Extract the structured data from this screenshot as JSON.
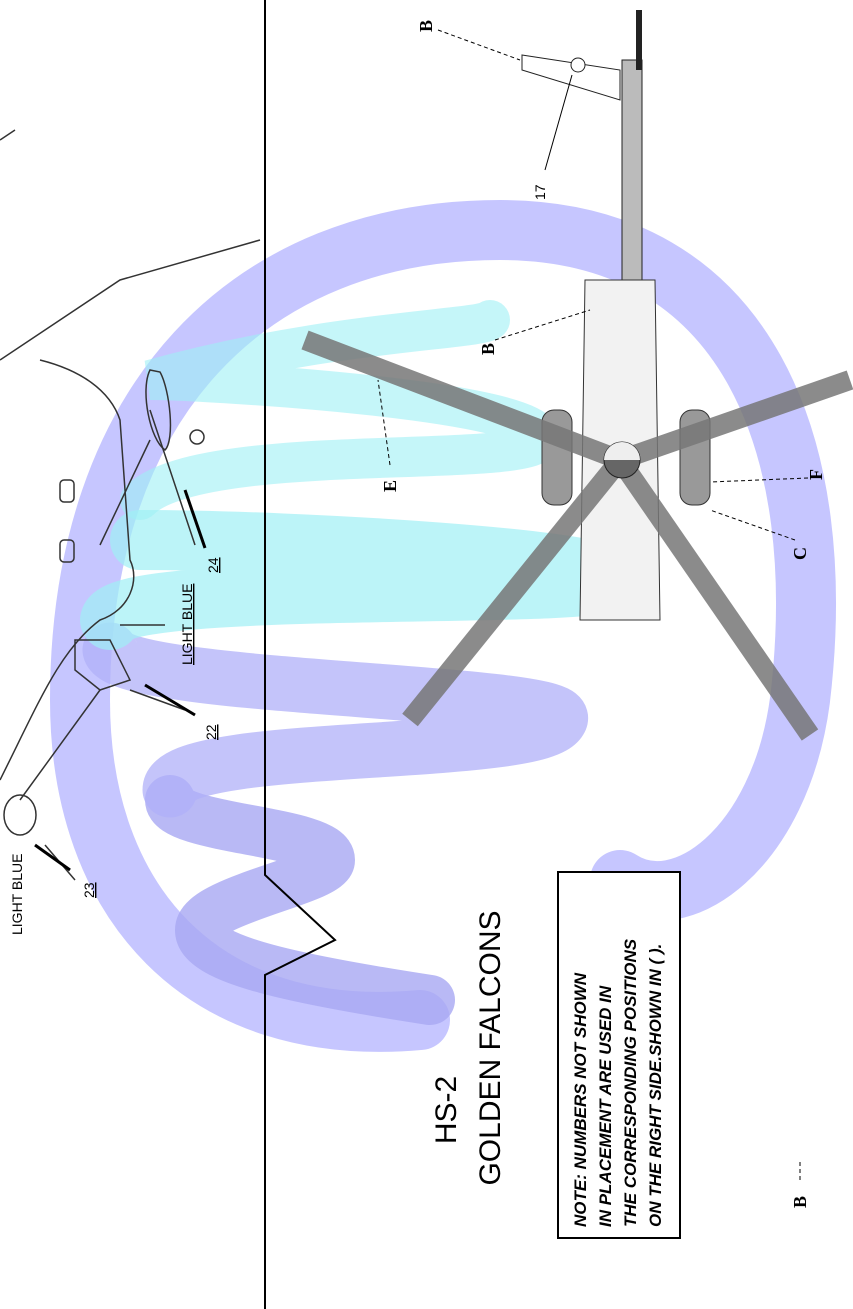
{
  "side_view": {
    "callouts": [
      "23",
      "22",
      "24"
    ],
    "color_notes": [
      "LIGHT BLUE",
      "LIGHT BLUE"
    ]
  },
  "top_view": {
    "callouts": [
      "17"
    ],
    "markers": [
      "B",
      "B",
      "E",
      "C",
      "F",
      "B"
    ]
  },
  "title": {
    "squadron": "HS-2",
    "name": "GOLDEN FALCONS"
  },
  "note": {
    "lines": [
      "NOTE: NUMBERS NOT SHOWN",
      "IN PLACEMENT ARE USED IN",
      "THE CORRESPONDING POSITIONS",
      "ON THE RIGHT SIDE.SHOWN IN ( )."
    ]
  }
}
